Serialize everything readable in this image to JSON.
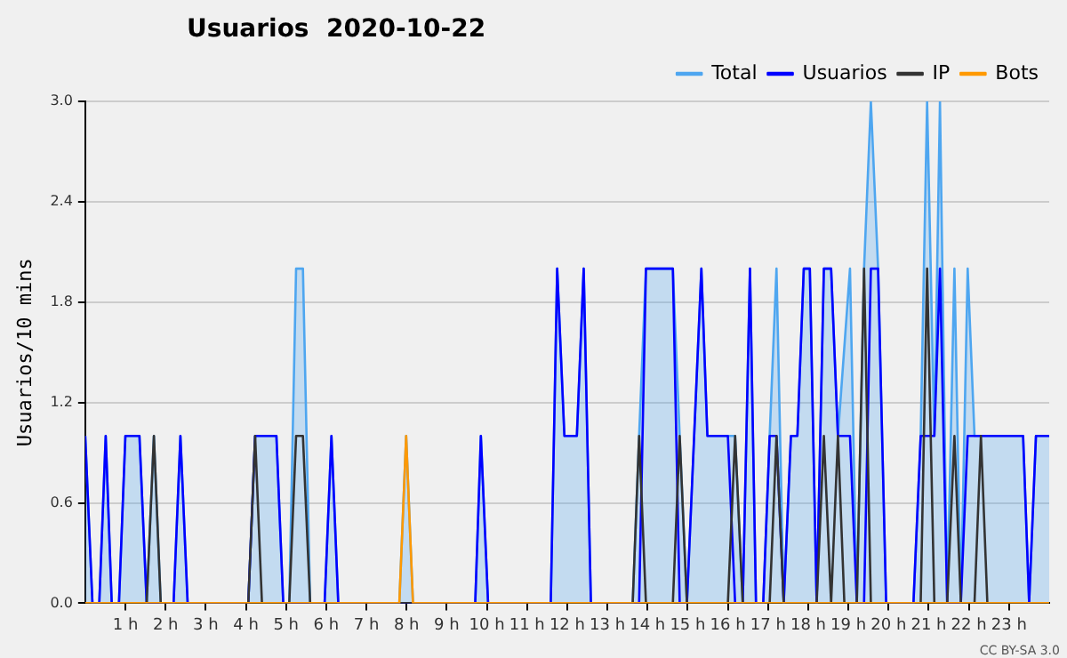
{
  "chart_data": {
    "type": "line",
    "title": "Usuarios  2020-10-22",
    "ylabel": "Usuarios/10 mins",
    "xlim": [
      0,
      24
    ],
    "xticks": [
      {
        "value": 1,
        "label": "1 h"
      },
      {
        "value": 2,
        "label": "2 h"
      },
      {
        "value": 3,
        "label": "3 h"
      },
      {
        "value": 4,
        "label": "4 h"
      },
      {
        "value": 5,
        "label": "5 h"
      },
      {
        "value": 6,
        "label": "6 h"
      },
      {
        "value": 7,
        "label": "7 h"
      },
      {
        "value": 8,
        "label": "8 h"
      },
      {
        "value": 9,
        "label": "9 h"
      },
      {
        "value": 10,
        "label": "10 h"
      },
      {
        "value": 11,
        "label": "11 h"
      },
      {
        "value": 12,
        "label": "12 h"
      },
      {
        "value": 13,
        "label": "13 h"
      },
      {
        "value": 14,
        "label": "14 h"
      },
      {
        "value": 15,
        "label": "15 h"
      },
      {
        "value": 16,
        "label": "16 h"
      },
      {
        "value": 17,
        "label": "17 h"
      },
      {
        "value": 18,
        "label": "18 h"
      },
      {
        "value": 19,
        "label": "19 h"
      },
      {
        "value": 20,
        "label": "20 h"
      },
      {
        "value": 21,
        "label": "21 h"
      },
      {
        "value": 22,
        "label": "22 h"
      },
      {
        "value": 23,
        "label": "23 h"
      }
    ],
    "ylim": [
      0,
      3
    ],
    "yticks": [
      {
        "value": 0,
        "label": "0.0"
      },
      {
        "value": 0.6,
        "label": "0.6"
      },
      {
        "value": 1.2,
        "label": "1.2"
      },
      {
        "value": 1.8,
        "label": "1.8"
      },
      {
        "value": 2.4,
        "label": "2.4"
      },
      {
        "value": 3,
        "label": "3.0"
      }
    ],
    "grid": "y",
    "legend": "top right",
    "marker": "none",
    "annotations": [
      "CC BY-SA 3.0"
    ],
    "series": [
      {
        "name": "Total",
        "type": "area",
        "color": "#4ea6f0",
        "x": [
          0,
          0.18,
          0.35,
          0.51,
          0.66,
          0.84,
          1.0,
          1.35,
          1.53,
          1.71,
          1.88,
          2.2,
          2.37,
          2.55,
          4.06,
          4.23,
          4.76,
          4.93,
          5.08,
          5.25,
          5.42,
          5.6,
          5.96,
          6.13,
          6.3,
          7.82,
          7.99,
          8.16,
          9.71,
          9.85,
          10.03,
          11.59,
          11.75,
          11.93,
          12.24,
          12.41,
          12.59,
          13.63,
          13.79,
          13.96,
          14.63,
          14.8,
          14.98,
          15.34,
          15.49,
          16.0,
          16.18,
          16.37,
          16.55,
          16.7,
          16.88,
          17.04,
          17.21,
          17.39,
          17.57,
          17.73,
          17.89,
          18.04,
          18.21,
          18.39,
          18.57,
          18.74,
          19.04,
          19.21,
          19.39,
          19.56,
          19.74,
          19.94,
          20.62,
          20.8,
          20.96,
          21.14,
          21.28,
          21.46,
          21.64,
          21.8,
          21.97,
          22.14,
          22.3,
          22.46,
          23.35,
          23.5,
          23.67,
          24
        ],
        "values": [
          1,
          0,
          0,
          1,
          0,
          0,
          1,
          1,
          0,
          1,
          0,
          0,
          1,
          0,
          0,
          1,
          1,
          0,
          0,
          2,
          2,
          0,
          0,
          1,
          0,
          0,
          1,
          0,
          0,
          1,
          0,
          0,
          2,
          1,
          1,
          2,
          0,
          0,
          1,
          2,
          2,
          1,
          0,
          2,
          1,
          1,
          1,
          0,
          2,
          0,
          0,
          1,
          2,
          0,
          1,
          1,
          2,
          2,
          0,
          2,
          2,
          1,
          2,
          0,
          2,
          3,
          2,
          0,
          0,
          1,
          3,
          1,
          3,
          0,
          2,
          0,
          2,
          1,
          1,
          1,
          1,
          0,
          1,
          1
        ]
      },
      {
        "name": "Usuarios",
        "color": "#0000ff",
        "x": [
          0,
          0.18,
          0.35,
          0.51,
          0.66,
          0.84,
          1.0,
          1.35,
          1.53,
          2.2,
          2.37,
          2.55,
          4.06,
          4.23,
          4.76,
          4.93,
          5.96,
          6.13,
          6.3,
          9.71,
          9.85,
          10.03,
          11.59,
          11.75,
          11.93,
          12.24,
          12.41,
          12.59,
          13.79,
          13.96,
          14.63,
          14.8,
          14.98,
          15.34,
          15.49,
          16.0,
          16.18,
          16.37,
          16.55,
          16.7,
          16.88,
          17.04,
          17.21,
          17.39,
          17.57,
          17.73,
          17.89,
          18.04,
          18.21,
          18.39,
          18.57,
          18.74,
          19.04,
          19.21,
          19.39,
          19.56,
          19.74,
          19.94,
          20.62,
          20.8,
          21.14,
          21.28,
          21.46,
          21.8,
          21.97,
          22.46,
          23.35,
          23.5,
          23.67,
          24
        ],
        "values": [
          1,
          0,
          0,
          1,
          0,
          0,
          1,
          1,
          0,
          0,
          1,
          0,
          0,
          1,
          1,
          0,
          0,
          1,
          0,
          0,
          1,
          0,
          0,
          2,
          1,
          1,
          2,
          0,
          0,
          2,
          2,
          0,
          0,
          2,
          1,
          1,
          0,
          0,
          2,
          0,
          0,
          1,
          1,
          0,
          1,
          1,
          2,
          2,
          0,
          2,
          2,
          1,
          1,
          0,
          0,
          2,
          2,
          0,
          0,
          1,
          1,
          2,
          0,
          0,
          1,
          1,
          1,
          0,
          1,
          1
        ]
      },
      {
        "name": "IP",
        "color": "#333333",
        "x": [
          0,
          1.53,
          1.71,
          1.88,
          4.06,
          4.23,
          4.4,
          5.08,
          5.25,
          5.42,
          5.6,
          13.63,
          13.79,
          13.96,
          14.63,
          14.8,
          14.98,
          16.0,
          16.18,
          16.37,
          17.04,
          17.21,
          17.39,
          18.21,
          18.39,
          18.57,
          18.74,
          18.9,
          19.21,
          19.39,
          19.56,
          20.8,
          20.96,
          21.14,
          21.46,
          21.64,
          21.8,
          22.14,
          22.3,
          22.46,
          24
        ],
        "values": [
          0,
          0,
          1,
          0,
          0,
          1,
          0,
          0,
          1,
          1,
          0,
          0,
          1,
          0,
          0,
          1,
          0,
          0,
          1,
          0,
          0,
          1,
          0,
          0,
          1,
          0,
          1,
          0,
          0,
          2,
          0,
          0,
          2,
          0,
          0,
          1,
          0,
          0,
          1,
          0,
          0
        ]
      },
      {
        "name": "Bots",
        "color": "#ff9900",
        "x": [
          0,
          7.82,
          7.99,
          8.16,
          24
        ],
        "values": [
          0,
          0,
          1,
          0,
          0
        ]
      }
    ]
  }
}
